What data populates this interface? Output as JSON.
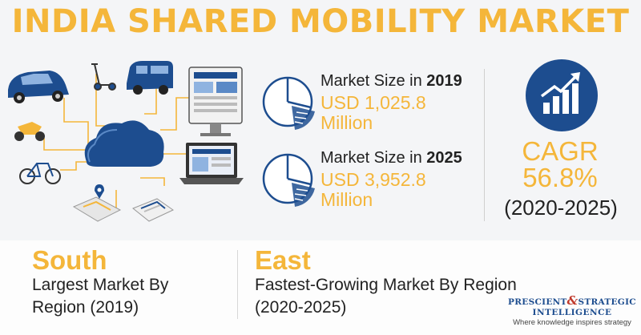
{
  "title": "INDIA SHARED MOBILITY MARKET",
  "stats": [
    {
      "label_prefix": "Market Size in ",
      "year": "2019",
      "value": "USD 1,025.8 Million"
    },
    {
      "label_prefix": "Market Size in ",
      "year": "2025",
      "value": "USD 3,952.8 Million"
    }
  ],
  "cagr": {
    "title": "CAGR",
    "value": "56.8%",
    "period": "(2020-2025)",
    "icon": "growth-chart-icon"
  },
  "regions": {
    "largest": {
      "name": "South",
      "desc": "Largest Market By Region (2019)"
    },
    "fastest": {
      "name": "East",
      "desc": "Fastest-Growing Market By Region (2020-2025)"
    }
  },
  "logo": {
    "line1_a": "PRESCIENT",
    "amp": "&",
    "line1_b": "STRATEGIC",
    "line2": "INTELLIGENCE",
    "tagline": "Where knowledge inspires strategy"
  },
  "colors": {
    "accent": "#f4b63a",
    "navy": "#1d4d8f",
    "text": "#222222"
  },
  "illustration_icons": [
    "car-icon",
    "scooter-icon",
    "van-icon",
    "motorbike-icon",
    "bicycle-icon",
    "cloud-icon",
    "dashboard-monitor-icon",
    "laptop-icon",
    "map-phone-icon",
    "app-phone-icon"
  ]
}
